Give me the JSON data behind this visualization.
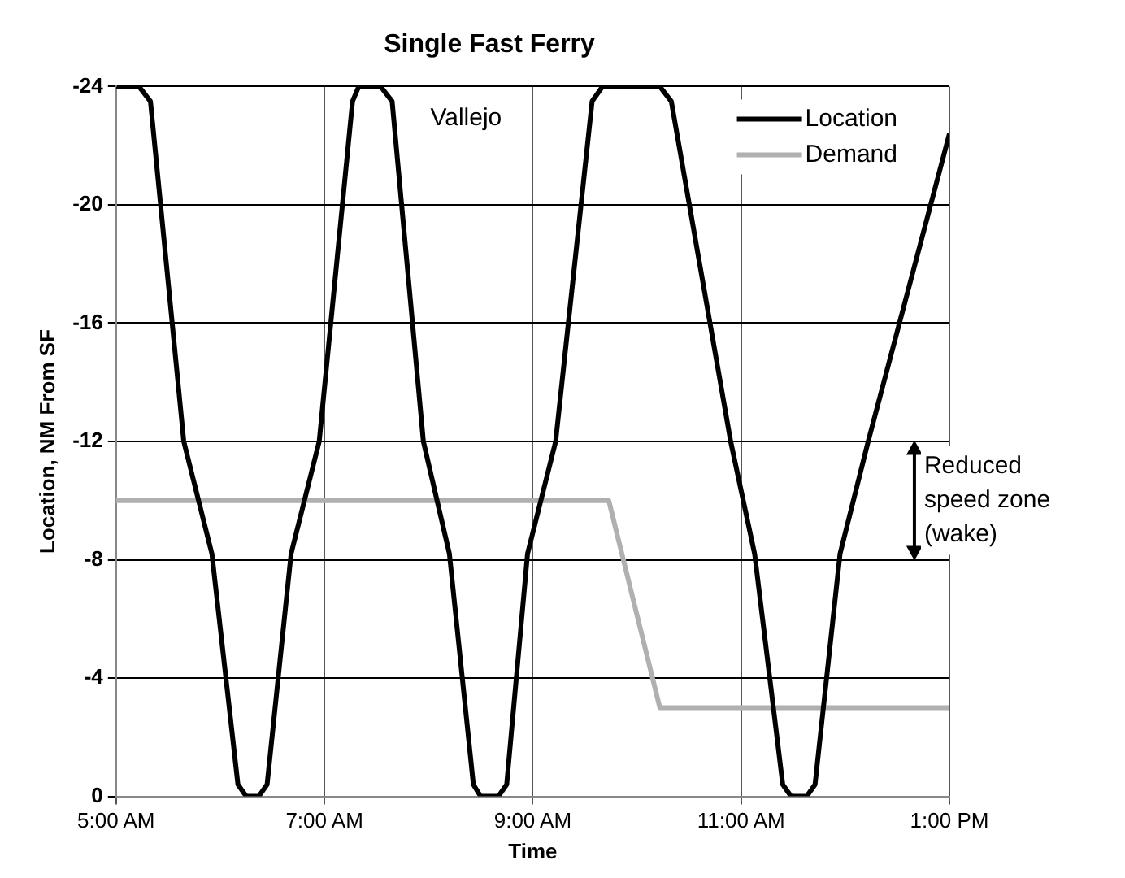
{
  "chart_data": {
    "type": "line",
    "title": "Single Fast Ferry",
    "xlabel": "Time",
    "ylabel": "Location, NM From SF",
    "xlim": [
      5,
      13
    ],
    "xticks": [
      {
        "value": 5,
        "label": "5:00 AM"
      },
      {
        "value": 7,
        "label": "7:00 AM"
      },
      {
        "value": 9,
        "label": "9:00 AM"
      },
      {
        "value": 11,
        "label": "11:00 AM"
      },
      {
        "value": 13,
        "label": "1:00 PM"
      }
    ],
    "ylim": [
      0,
      -24
    ],
    "yticks": [
      -24,
      -20,
      -16,
      -12,
      -8,
      -4,
      0
    ],
    "grid": true,
    "legend": "top right",
    "marker": "none",
    "line_style": "solid",
    "series": [
      {
        "name": "Location",
        "color": "#000000",
        "x": [
          5,
          5.22,
          5.33,
          5.65,
          5.92,
          6.17,
          6.25,
          6.37,
          6.45,
          6.68,
          6.95,
          7.27,
          7.33,
          7.54,
          7.65,
          7.95,
          8.2,
          8.43,
          8.5,
          8.67,
          8.75,
          8.95,
          9.22,
          9.57,
          9.67,
          10.22,
          10.33,
          10.9,
          11.13,
          11.4,
          11.48,
          11.63,
          11.71,
          11.95,
          12.22,
          13
        ],
        "values": [
          -24,
          -24,
          -23.5,
          -12,
          -8.2,
          -0.4,
          0,
          0,
          -0.4,
          -8.2,
          -12,
          -23.5,
          -24,
          -24,
          -23.5,
          -12,
          -8.2,
          -0.4,
          0,
          0,
          -0.4,
          -8.2,
          -12,
          -23.5,
          -24,
          -24,
          -23.5,
          -12,
          -8.2,
          -0.4,
          0,
          0,
          -0.4,
          -8.2,
          -12,
          -22.4
        ]
      },
      {
        "name": "Demand",
        "color": "#b0b0b0",
        "x": [
          5,
          9.73,
          10.22,
          13
        ],
        "values": [
          -10,
          -10,
          -3,
          -3
        ]
      }
    ],
    "annotations": [
      "Vallejo",
      "Reduced speed zone (wake)"
    ]
  }
}
